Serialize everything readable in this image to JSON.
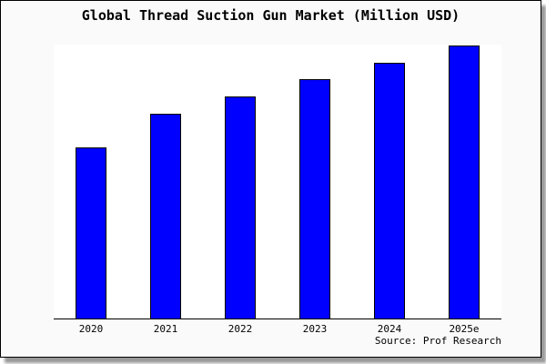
{
  "window": {
    "background_color": "#fafafa",
    "border_color": "#000000",
    "shadow_color": "#999999"
  },
  "chart_data": {
    "type": "bar",
    "title": "Global Thread Suction Gun Market (Million USD)",
    "categories": [
      "2020",
      "2021",
      "2022",
      "2023",
      "2024",
      "2025e"
    ],
    "values": [
      62.7,
      75.0,
      81.3,
      87.7,
      93.7,
      100.0
    ],
    "values_note": "No y-axis scale shown in chart; values are relative bar heights as percent of the tallest (2025e) bar",
    "xlabel": "",
    "ylabel": "",
    "y_axis_labels_visible": false,
    "grid": false,
    "legend": false,
    "bar_color": "#0000ff",
    "bar_border_color": "#000000",
    "plot_background": "#ffffff",
    "axis_line_color": "#000000",
    "source_note": "Source: Prof Research"
  }
}
